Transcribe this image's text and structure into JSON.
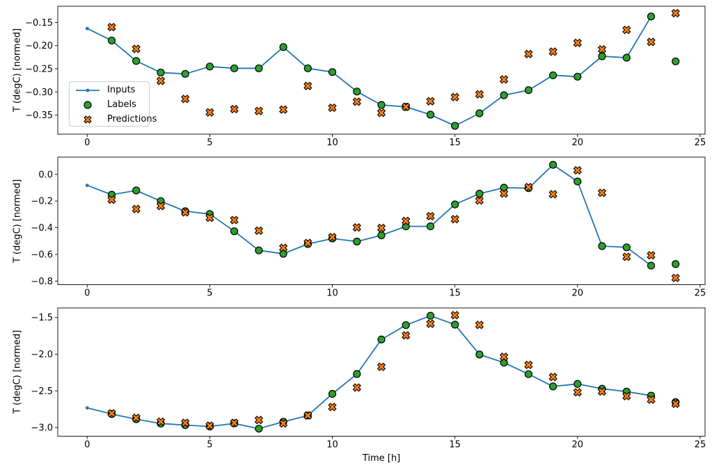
{
  "figure": {
    "background": "#ffffff",
    "xlabel": "Time [h]",
    "legend": {
      "position": "upper-left-of-first-subplot",
      "items": [
        {
          "label": "Inputs",
          "marker": "line-dot",
          "color": "#1f77b4",
          "edge": "#1f77b4"
        },
        {
          "label": "Labels",
          "marker": "circle",
          "color": "#2ca02c",
          "edge": "#000000"
        },
        {
          "label": "Predictions",
          "marker": "x",
          "color": "#ff7f0e",
          "edge": "#000000"
        }
      ]
    }
  },
  "chart_data": [
    {
      "type": "line",
      "subplot": 1,
      "title": "",
      "xlabel": "",
      "ylabel": "T (degC) [normed]",
      "xlim": [
        -1.2,
        25.2
      ],
      "ylim": [
        -0.391,
        -0.115
      ],
      "grid": false,
      "xticks": [
        0,
        5,
        10,
        15,
        20,
        25
      ],
      "xtick_labels": [
        "0",
        "5",
        "10",
        "15",
        "20",
        "25"
      ],
      "yticks": [
        -0.15,
        -0.2,
        -0.25,
        -0.3,
        -0.35
      ],
      "ytick_labels": [
        "−0.15",
        "−0.20",
        "−0.25",
        "−0.30",
        "−0.35"
      ],
      "legend_visible": true,
      "series": [
        {
          "name": "Inputs",
          "render": "line",
          "marker": "dot",
          "color": "#1f77b4",
          "x": [
            0,
            1,
            2,
            3,
            4,
            5,
            6,
            7,
            8,
            9,
            10,
            11,
            12,
            13,
            14,
            15,
            16,
            17,
            18,
            19,
            20,
            21,
            22,
            23
          ],
          "y": [
            -0.163,
            -0.189,
            -0.233,
            -0.258,
            -0.261,
            -0.245,
            -0.249,
            -0.249,
            -0.203,
            -0.249,
            -0.257,
            -0.299,
            -0.328,
            -0.332,
            -0.349,
            -0.373,
            -0.346,
            -0.307,
            -0.296,
            -0.264,
            -0.267,
            -0.223,
            -0.226,
            -0.137
          ]
        },
        {
          "name": "Labels",
          "render": "scatter",
          "marker": "circle",
          "color": "#2ca02c",
          "edgecolor": "#000000",
          "x": [
            1,
            2,
            3,
            4,
            5,
            6,
            7,
            8,
            9,
            10,
            11,
            12,
            13,
            14,
            15,
            16,
            17,
            18,
            19,
            20,
            21,
            22,
            23,
            24
          ],
          "y": [
            -0.189,
            -0.233,
            -0.258,
            -0.261,
            -0.245,
            -0.249,
            -0.249,
            -0.203,
            -0.249,
            -0.257,
            -0.299,
            -0.328,
            -0.332,
            -0.349,
            -0.373,
            -0.346,
            -0.307,
            -0.296,
            -0.264,
            -0.267,
            -0.223,
            -0.226,
            -0.137,
            -0.234
          ]
        },
        {
          "name": "Predictions",
          "render": "scatter",
          "marker": "X",
          "color": "#ff7f0e",
          "edgecolor": "#000000",
          "x": [
            1,
            2,
            3,
            4,
            5,
            6,
            7,
            8,
            9,
            10,
            11,
            12,
            13,
            14,
            15,
            16,
            17,
            18,
            19,
            20,
            21,
            22,
            23,
            24
          ],
          "y": [
            -0.16,
            -0.207,
            -0.276,
            -0.315,
            -0.344,
            -0.337,
            -0.341,
            -0.338,
            -0.287,
            -0.334,
            -0.321,
            -0.345,
            -0.332,
            -0.32,
            -0.311,
            -0.305,
            -0.273,
            -0.218,
            -0.213,
            -0.194,
            -0.208,
            -0.166,
            -0.192,
            -0.13
          ]
        }
      ]
    },
    {
      "type": "line",
      "subplot": 2,
      "title": "",
      "xlabel": "",
      "ylabel": "T (degC) [normed]",
      "xlim": [
        -1.2,
        25.2
      ],
      "ylim": [
        -0.827,
        0.129
      ],
      "grid": false,
      "xticks": [
        0,
        5,
        10,
        15,
        20,
        25
      ],
      "xtick_labels": [
        "0",
        "5",
        "10",
        "15",
        "20",
        "25"
      ],
      "yticks": [
        0.0,
        -0.2,
        -0.4,
        -0.6,
        -0.8
      ],
      "ytick_labels": [
        "0.0",
        "−0.2",
        "−0.4",
        "−0.6",
        "−0.8"
      ],
      "legend_visible": false,
      "series": [
        {
          "name": "Inputs",
          "render": "line",
          "marker": "dot",
          "color": "#1f77b4",
          "x": [
            0,
            1,
            2,
            3,
            4,
            5,
            6,
            7,
            8,
            9,
            10,
            11,
            12,
            13,
            14,
            15,
            16,
            17,
            18,
            19,
            20,
            21,
            22,
            23
          ],
          "y": [
            -0.083,
            -0.153,
            -0.121,
            -0.201,
            -0.277,
            -0.297,
            -0.427,
            -0.57,
            -0.595,
            -0.522,
            -0.481,
            -0.504,
            -0.457,
            -0.39,
            -0.39,
            -0.226,
            -0.145,
            -0.1,
            -0.104,
            0.071,
            -0.054,
            -0.538,
            -0.547,
            -0.684
          ]
        },
        {
          "name": "Labels",
          "render": "scatter",
          "marker": "circle",
          "color": "#2ca02c",
          "edgecolor": "#000000",
          "x": [
            1,
            2,
            3,
            4,
            5,
            6,
            7,
            8,
            9,
            10,
            11,
            12,
            13,
            14,
            15,
            16,
            17,
            18,
            19,
            20,
            21,
            22,
            23,
            24
          ],
          "y": [
            -0.153,
            -0.121,
            -0.201,
            -0.277,
            -0.297,
            -0.427,
            -0.57,
            -0.595,
            -0.522,
            -0.481,
            -0.504,
            -0.457,
            -0.39,
            -0.39,
            -0.226,
            -0.145,
            -0.1,
            -0.104,
            0.071,
            -0.054,
            -0.538,
            -0.547,
            -0.684,
            -0.673
          ]
        },
        {
          "name": "Predictions",
          "render": "scatter",
          "marker": "X",
          "color": "#ff7f0e",
          "edgecolor": "#000000",
          "x": [
            1,
            2,
            3,
            4,
            5,
            6,
            7,
            8,
            9,
            10,
            11,
            12,
            13,
            14,
            15,
            16,
            17,
            18,
            19,
            20,
            21,
            22,
            23,
            24
          ],
          "y": [
            -0.19,
            -0.26,
            -0.237,
            -0.285,
            -0.326,
            -0.343,
            -0.422,
            -0.551,
            -0.515,
            -0.471,
            -0.398,
            -0.402,
            -0.349,
            -0.314,
            -0.336,
            -0.196,
            -0.144,
            -0.096,
            -0.149,
            0.03,
            -0.139,
            -0.618,
            -0.607,
            -0.777
          ]
        }
      ]
    },
    {
      "type": "line",
      "subplot": 3,
      "title": "",
      "xlabel": "Time [h]",
      "ylabel": "T (degC) [normed]",
      "xlim": [
        -1.2,
        25.2
      ],
      "ylim": [
        -3.118,
        -1.37
      ],
      "grid": false,
      "xticks": [
        0,
        5,
        10,
        15,
        20,
        25
      ],
      "xtick_labels": [
        "0",
        "5",
        "10",
        "15",
        "20",
        "25"
      ],
      "yticks": [
        -1.5,
        -2.0,
        -2.5,
        -3.0
      ],
      "ytick_labels": [
        "−1.5",
        "−2.0",
        "−2.5",
        "−3.0"
      ],
      "legend_visible": false,
      "series": [
        {
          "name": "Inputs",
          "render": "line",
          "marker": "dot",
          "color": "#1f77b4",
          "x": [
            0,
            1,
            2,
            3,
            4,
            5,
            6,
            7,
            8,
            9,
            10,
            11,
            12,
            13,
            14,
            15,
            16,
            17,
            18,
            19,
            20,
            21,
            22,
            23
          ],
          "y": [
            -2.732,
            -2.816,
            -2.886,
            -2.946,
            -2.966,
            -2.985,
            -2.944,
            -3.016,
            -2.921,
            -2.836,
            -2.541,
            -2.27,
            -1.8,
            -1.604,
            -1.476,
            -1.597,
            -2.005,
            -2.116,
            -2.272,
            -2.44,
            -2.406,
            -2.471,
            -2.51,
            -2.566
          ]
        },
        {
          "name": "Labels",
          "render": "scatter",
          "marker": "circle",
          "color": "#2ca02c",
          "edgecolor": "#000000",
          "x": [
            1,
            2,
            3,
            4,
            5,
            6,
            7,
            8,
            9,
            10,
            11,
            12,
            13,
            14,
            15,
            16,
            17,
            18,
            19,
            20,
            21,
            22,
            23,
            24
          ],
          "y": [
            -2.816,
            -2.886,
            -2.946,
            -2.966,
            -2.985,
            -2.944,
            -3.016,
            -2.921,
            -2.836,
            -2.541,
            -2.27,
            -1.8,
            -1.604,
            -1.476,
            -1.597,
            -2.005,
            -2.116,
            -2.272,
            -2.44,
            -2.406,
            -2.471,
            -2.51,
            -2.566,
            -2.654
          ]
        },
        {
          "name": "Predictions",
          "render": "scatter",
          "marker": "X",
          "color": "#ff7f0e",
          "edgecolor": "#000000",
          "x": [
            1,
            2,
            3,
            4,
            5,
            6,
            7,
            8,
            9,
            10,
            11,
            12,
            13,
            14,
            15,
            16,
            17,
            18,
            19,
            20,
            21,
            22,
            23,
            24
          ],
          "y": [
            -2.806,
            -2.869,
            -2.92,
            -2.936,
            -2.975,
            -2.936,
            -2.897,
            -2.945,
            -2.836,
            -2.72,
            -2.455,
            -2.172,
            -1.744,
            -1.585,
            -1.469,
            -1.601,
            -2.036,
            -2.146,
            -2.311,
            -2.52,
            -2.509,
            -2.572,
            -2.62,
            -2.676
          ]
        }
      ]
    }
  ]
}
